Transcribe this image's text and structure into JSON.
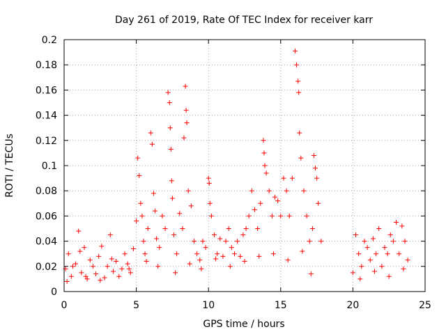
{
  "chart_data": {
    "type": "scatter",
    "title": "Day 261 of 2019, Rate Of TEC Index for receiver karr",
    "xlabel": "GPS time / hours",
    "ylabel": "ROTI / TECUs",
    "xlim": [
      0,
      25
    ],
    "ylim": [
      0,
      0.2
    ],
    "x_ticks": [
      0,
      5,
      10,
      15,
      20,
      25
    ],
    "x_tick_labels": [
      "0",
      "5",
      "10",
      "15",
      "20",
      "25"
    ],
    "y_ticks": [
      0,
      0.02,
      0.04,
      0.06,
      0.08,
      0.1,
      0.12,
      0.14,
      0.16,
      0.18,
      0.2
    ],
    "y_tick_labels": [
      "0",
      "0.02",
      "0.04",
      "0.06",
      "0.08",
      "0.1",
      "0.12",
      "0.14",
      "0.16",
      "0.18",
      "0.2"
    ],
    "grid": true,
    "marker": "plus",
    "marker_color": "#ff0000",
    "legend": "none",
    "series": [
      {
        "name": "ROTI",
        "x": [
          0.1,
          0.3,
          0.5,
          0.8,
          1.0,
          1.2,
          1.4,
          1.6,
          1.8,
          2.0,
          2.2,
          2.4,
          2.6,
          2.8,
          3.0,
          3.2,
          3.4,
          3.6,
          3.8,
          4.0,
          4.2,
          4.4,
          4.6,
          4.8,
          5.0,
          5.1,
          5.2,
          5.3,
          5.4,
          5.5,
          5.6,
          5.8,
          6.0,
          6.1,
          6.2,
          6.3,
          6.4,
          6.6,
          6.8,
          7.0,
          7.2,
          7.3,
          7.35,
          7.4,
          7.45,
          7.5,
          7.6,
          7.8,
          8.0,
          8.2,
          8.3,
          8.4,
          8.45,
          8.5,
          8.6,
          8.8,
          9.0,
          9.2,
          9.4,
          9.6,
          9.8,
          10.0,
          10.05,
          10.1,
          10.2,
          10.4,
          10.6,
          10.8,
          11.0,
          11.2,
          11.4,
          11.6,
          11.8,
          12.0,
          12.2,
          12.4,
          12.6,
          12.8,
          13.0,
          13.2,
          13.4,
          13.6,
          13.8,
          13.85,
          13.9,
          14.0,
          14.2,
          14.4,
          14.6,
          14.8,
          15.0,
          15.2,
          15.4,
          15.6,
          15.8,
          16.0,
          16.1,
          16.2,
          16.25,
          16.3,
          16.4,
          16.6,
          16.8,
          17.0,
          17.2,
          17.3,
          17.4,
          17.5,
          17.6,
          17.8,
          20.0,
          20.2,
          20.4,
          20.6,
          20.8,
          21.0,
          21.2,
          21.4,
          21.6,
          21.8,
          22.0,
          22.2,
          22.4,
          22.6,
          22.8,
          23.0,
          23.2,
          23.4,
          23.6,
          23.8,
          0.2,
          0.6,
          1.1,
          1.5,
          2.5,
          3.3,
          4.5,
          5.7,
          6.5,
          7.7,
          8.7,
          9.5,
          10.5,
          11.5,
          12.5,
          13.5,
          14.5,
          15.5,
          16.5,
          17.1,
          20.5,
          21.5,
          22.5,
          23.5
        ],
        "y": [
          0.018,
          0.03,
          0.012,
          0.022,
          0.048,
          0.015,
          0.035,
          0.01,
          0.025,
          0.02,
          0.014,
          0.028,
          0.036,
          0.011,
          0.02,
          0.045,
          0.016,
          0.024,
          0.012,
          0.018,
          0.03,
          0.022,
          0.015,
          0.034,
          0.056,
          0.106,
          0.092,
          0.07,
          0.06,
          0.04,
          0.03,
          0.05,
          0.126,
          0.117,
          0.078,
          0.064,
          0.042,
          0.035,
          0.06,
          0.05,
          0.158,
          0.15,
          0.13,
          0.113,
          0.088,
          0.074,
          0.045,
          0.03,
          0.062,
          0.05,
          0.122,
          0.163,
          0.144,
          0.134,
          0.08,
          0.068,
          0.04,
          0.03,
          0.025,
          0.04,
          0.035,
          0.09,
          0.086,
          0.07,
          0.06,
          0.045,
          0.03,
          0.042,
          0.028,
          0.04,
          0.05,
          0.035,
          0.03,
          0.04,
          0.028,
          0.045,
          0.05,
          0.06,
          0.08,
          0.065,
          0.05,
          0.07,
          0.12,
          0.11,
          0.1,
          0.094,
          0.08,
          0.06,
          0.075,
          0.072,
          0.06,
          0.09,
          0.08,
          0.06,
          0.09,
          0.191,
          0.18,
          0.167,
          0.158,
          0.126,
          0.106,
          0.08,
          0.06,
          0.04,
          0.05,
          0.108,
          0.098,
          0.09,
          0.07,
          0.04,
          0.015,
          0.045,
          0.03,
          0.02,
          0.04,
          0.035,
          0.025,
          0.042,
          0.03,
          0.05,
          0.02,
          0.035,
          0.03,
          0.045,
          0.04,
          0.055,
          0.03,
          0.052,
          0.04,
          0.025,
          0.008,
          0.02,
          0.032,
          0.012,
          0.009,
          0.026,
          0.018,
          0.024,
          0.02,
          0.015,
          0.022,
          0.018,
          0.026,
          0.02,
          0.024,
          0.028,
          0.03,
          0.025,
          0.032,
          0.014,
          0.01,
          0.016,
          0.012,
          0.018
        ]
      }
    ]
  }
}
